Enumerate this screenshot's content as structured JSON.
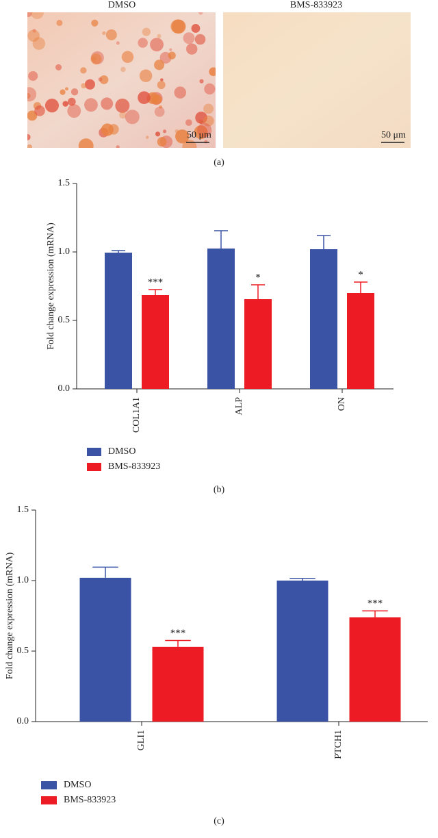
{
  "images": {
    "labels": [
      "DMSO",
      "BMS-833923"
    ],
    "scale_bars": [
      "50 μm",
      "50 μm"
    ],
    "caption": "(a)"
  },
  "chart_data": [
    {
      "type": "bar",
      "caption": "(b)",
      "ylabel": "Fold change expression (mRNA)",
      "categories": [
        "COL1A1",
        "ALP",
        "ON"
      ],
      "series": [
        {
          "name": "DMSO",
          "color": "#3a53a4",
          "values": [
            0.995,
            1.025,
            1.02
          ],
          "errors": [
            0.015,
            0.13,
            0.1
          ]
        },
        {
          "name": "BMS-833923",
          "color": "#ed1c24",
          "values": [
            0.685,
            0.655,
            0.7
          ],
          "errors": [
            0.04,
            0.105,
            0.08
          ],
          "significance": [
            "***",
            "*",
            "*"
          ]
        }
      ],
      "ylim": [
        0,
        1.5
      ],
      "yticks": [
        {
          "value": 0,
          "label": "0.0"
        },
        {
          "value": 0.5,
          "label": "0.5"
        },
        {
          "value": 1,
          "label": "1.0"
        },
        {
          "value": 1.5,
          "label": "1.5"
        }
      ]
    },
    {
      "type": "bar",
      "caption": "(c)",
      "ylabel": "Fold change expression (mRNA)",
      "categories": [
        "GLI1",
        "PTCH1"
      ],
      "series": [
        {
          "name": "DMSO",
          "color": "#3a53a4",
          "values": [
            1.02,
            1.0
          ],
          "errors": [
            0.075,
            0.015
          ]
        },
        {
          "name": "BMS-833923",
          "color": "#ed1c24",
          "values": [
            0.53,
            0.74
          ],
          "errors": [
            0.045,
            0.045
          ],
          "significance": [
            "***",
            "***"
          ]
        }
      ],
      "ylim": [
        0,
        1.5
      ],
      "yticks": [
        {
          "value": 0,
          "label": "0.0"
        },
        {
          "value": 0.5,
          "label": "0.5"
        },
        {
          "value": 1,
          "label": "1.0"
        },
        {
          "value": 1.5,
          "label": "1.5"
        }
      ]
    }
  ]
}
